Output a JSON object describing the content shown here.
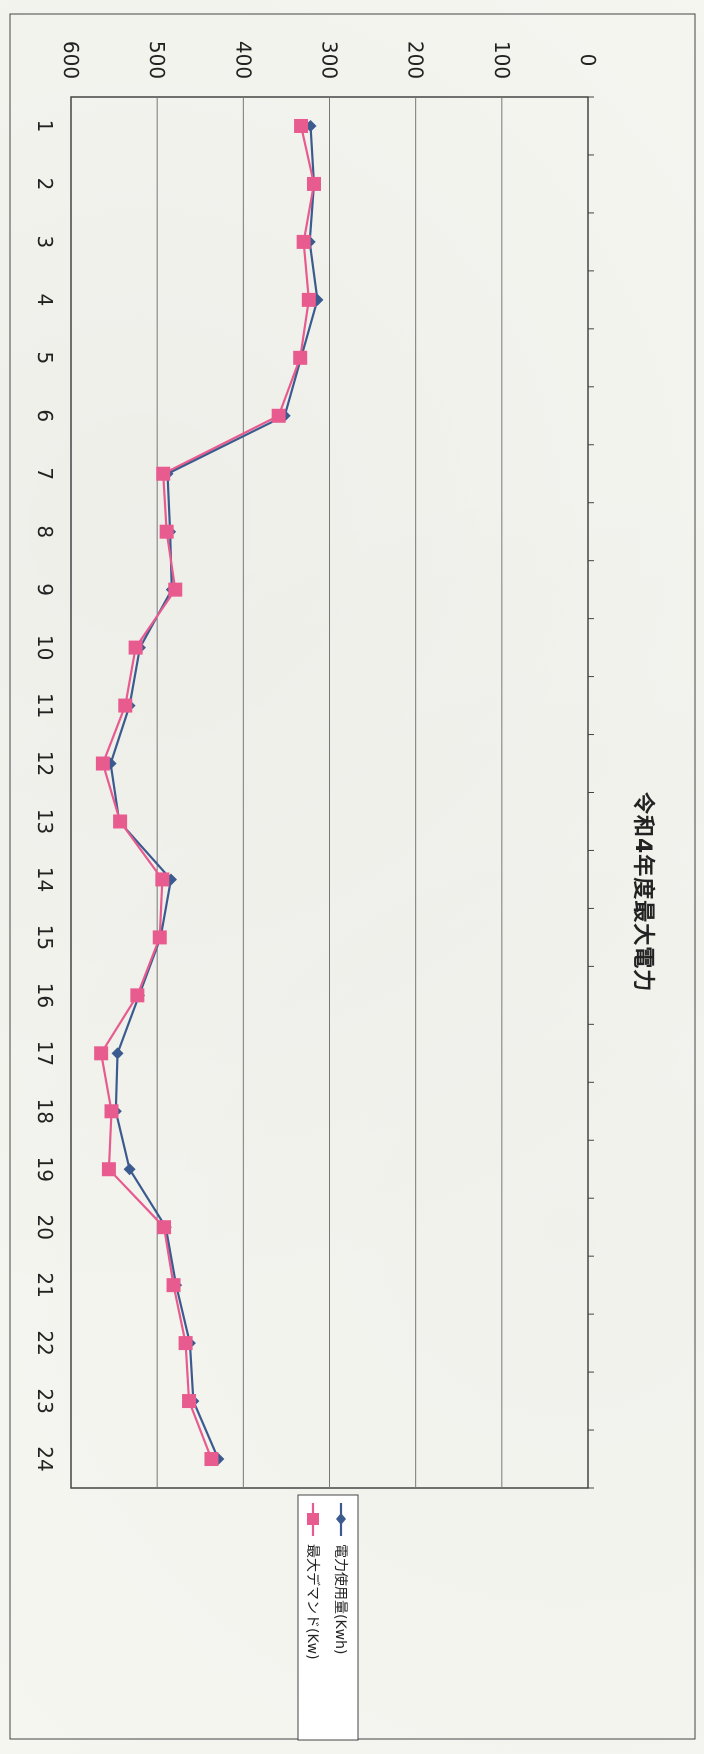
{
  "chart_data": {
    "type": "line",
    "title": "令和4年度最大電力",
    "categories": [
      "1",
      "2",
      "3",
      "4",
      "5",
      "6",
      "7",
      "8",
      "9",
      "10",
      "11",
      "12",
      "13",
      "14",
      "15",
      "16",
      "17",
      "18",
      "19",
      "20",
      "21",
      "22",
      "23",
      "24"
    ],
    "series": [
      {
        "name": "電力使用量(Kwh)",
        "color": "#3b5b8f",
        "marker": "diamond",
        "values": [
          322,
          318,
          323,
          314,
          333,
          352,
          488,
          485,
          483,
          520,
          532,
          554,
          544,
          484,
          496,
          521,
          546,
          548,
          532,
          490,
          478,
          462,
          458,
          429
        ]
      },
      {
        "name": "最大デマンド(Kw)",
        "color": "#e75b8f",
        "marker": "square",
        "values": [
          333,
          318,
          330,
          324,
          334,
          359,
          493,
          489,
          479,
          525,
          537,
          563,
          543,
          494,
          497,
          523,
          565,
          553,
          556,
          492,
          481,
          467,
          463,
          437
        ]
      }
    ],
    "ylim": [
      0,
      600
    ],
    "yticks": [
      "0",
      "100",
      "200",
      "300",
      "400",
      "500",
      "600"
    ],
    "grid": true,
    "legend": "right"
  }
}
